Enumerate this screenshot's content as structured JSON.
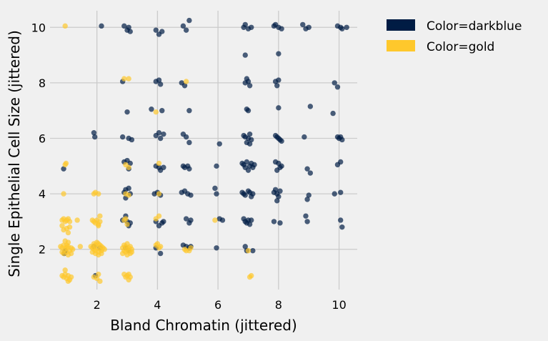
{
  "chart_data": {
    "type": "scatter",
    "title": "",
    "xlabel": "Bland Chromatin (jittered)",
    "ylabel": "Single Epithelial Cell Size (jittered)",
    "xlim": [
      0.45,
      10.6
    ],
    "ylim": [
      0.55,
      10.6
    ],
    "xticks": [
      2,
      4,
      6,
      8,
      10
    ],
    "yticks": [
      2,
      4,
      6,
      8,
      10
    ],
    "grid": true,
    "legend_position": "outside-top-right",
    "series": [
      {
        "name": "Color=darkblue",
        "color": "#001c44",
        "points": [
          [
            0.9,
            4.9
          ],
          [
            0.92,
            1.85
          ],
          [
            0.95,
            1.95
          ],
          [
            1.9,
            6.2
          ],
          [
            1.93,
            6.05
          ],
          [
            1.95,
            1.05
          ],
          [
            1.9,
            2.1
          ],
          [
            2.1,
            2.05
          ],
          [
            2.15,
            10.05
          ],
          [
            2.85,
            8.05
          ],
          [
            2.9,
            10.05
          ],
          [
            3.0,
            9.9
          ],
          [
            3.05,
            10.0
          ],
          [
            3.1,
            9.85
          ],
          [
            3.0,
            6.95
          ],
          [
            2.85,
            6.05
          ],
          [
            3.05,
            6.0
          ],
          [
            3.15,
            5.95
          ],
          [
            2.9,
            5.15
          ],
          [
            3.0,
            5.2
          ],
          [
            3.1,
            5.1
          ],
          [
            3.05,
            4.9
          ],
          [
            2.95,
            4.15
          ],
          [
            3.05,
            4.2
          ],
          [
            2.9,
            4.05
          ],
          [
            3.1,
            4.0
          ],
          [
            2.95,
            3.85
          ],
          [
            2.85,
            3.05
          ],
          [
            2.95,
            3.2
          ],
          [
            3.0,
            3.0
          ],
          [
            3.1,
            2.95
          ],
          [
            3.05,
            2.85
          ],
          [
            2.95,
            2.05
          ],
          [
            3.05,
            1.95
          ],
          [
            3.8,
            7.05
          ],
          [
            3.95,
            8.05
          ],
          [
            4.05,
            8.1
          ],
          [
            4.1,
            7.95
          ],
          [
            4.15,
            7.0
          ],
          [
            3.95,
            6.1
          ],
          [
            4.05,
            6.2
          ],
          [
            4.1,
            6.0
          ],
          [
            4.2,
            6.15
          ],
          [
            3.95,
            5.0
          ],
          [
            4.05,
            4.95
          ],
          [
            4.1,
            4.85
          ],
          [
            4.2,
            4.95
          ],
          [
            3.9,
            4.0
          ],
          [
            4.0,
            4.05
          ],
          [
            4.1,
            3.95
          ],
          [
            3.95,
            3.0
          ],
          [
            4.05,
            2.85
          ],
          [
            4.15,
            2.95
          ],
          [
            4.2,
            3.0
          ],
          [
            3.95,
            2.05
          ],
          [
            4.1,
            1.85
          ],
          [
            3.95,
            9.9
          ],
          [
            4.05,
            9.75
          ],
          [
            4.15,
            9.85
          ],
          [
            4.85,
            10.05
          ],
          [
            4.95,
            9.9
          ],
          [
            5.05,
            10.25
          ],
          [
            4.8,
            8.0
          ],
          [
            4.9,
            7.9
          ],
          [
            5.05,
            7.0
          ],
          [
            4.85,
            6.15
          ],
          [
            4.95,
            6.05
          ],
          [
            5.05,
            5.85
          ],
          [
            4.85,
            5.0
          ],
          [
            4.9,
            4.95
          ],
          [
            5.0,
            5.0
          ],
          [
            5.05,
            4.9
          ],
          [
            4.8,
            4.05
          ],
          [
            4.9,
            4.1
          ],
          [
            5.0,
            4.0
          ],
          [
            5.1,
            3.95
          ],
          [
            4.95,
            3.1
          ],
          [
            5.1,
            3.05
          ],
          [
            5.05,
            2.95
          ],
          [
            4.85,
            2.15
          ],
          [
            4.95,
            2.1
          ],
          [
            5.05,
            2.05
          ],
          [
            5.1,
            2.1
          ],
          [
            5.9,
            4.2
          ],
          [
            5.95,
            4.0
          ],
          [
            5.95,
            5.0
          ],
          [
            6.05,
            5.8
          ],
          [
            6.05,
            3.1
          ],
          [
            6.15,
            3.05
          ],
          [
            5.95,
            2.05
          ],
          [
            6.85,
            10.0
          ],
          [
            6.9,
            10.1
          ],
          [
            7.0,
            9.95
          ],
          [
            7.1,
            10.0
          ],
          [
            6.9,
            9.0
          ],
          [
            6.95,
            8.15
          ],
          [
            6.9,
            8.0
          ],
          [
            7.0,
            8.05
          ],
          [
            7.05,
            7.9
          ],
          [
            6.95,
            7.05
          ],
          [
            7.0,
            7.0
          ],
          [
            6.85,
            6.1
          ],
          [
            6.9,
            6.05
          ],
          [
            7.0,
            6.0
          ],
          [
            7.05,
            6.15
          ],
          [
            7.1,
            5.95
          ],
          [
            6.95,
            5.85
          ],
          [
            7.05,
            5.8
          ],
          [
            6.8,
            5.1
          ],
          [
            6.85,
            5.05
          ],
          [
            6.9,
            4.95
          ],
          [
            6.95,
            5.15
          ],
          [
            7.0,
            4.85
          ],
          [
            7.05,
            5.0
          ],
          [
            7.1,
            5.1
          ],
          [
            7.15,
            4.95
          ],
          [
            7.2,
            5.05
          ],
          [
            6.8,
            4.05
          ],
          [
            6.85,
            4.0
          ],
          [
            6.9,
            3.95
          ],
          [
            7.0,
            4.1
          ],
          [
            7.05,
            4.05
          ],
          [
            7.1,
            3.9
          ],
          [
            7.15,
            4.0
          ],
          [
            6.85,
            3.1
          ],
          [
            6.9,
            3.0
          ],
          [
            6.95,
            2.95
          ],
          [
            7.0,
            3.05
          ],
          [
            7.05,
            2.9
          ],
          [
            7.1,
            3.05
          ],
          [
            6.9,
            2.1
          ],
          [
            6.95,
            1.95
          ],
          [
            7.15,
            1.95
          ],
          [
            7.85,
            10.05
          ],
          [
            7.9,
            10.1
          ],
          [
            8.0,
            10.0
          ],
          [
            8.1,
            9.95
          ],
          [
            8.0,
            9.05
          ],
          [
            7.9,
            8.05
          ],
          [
            8.0,
            8.1
          ],
          [
            7.95,
            7.9
          ],
          [
            8.0,
            7.1
          ],
          [
            7.9,
            6.1
          ],
          [
            7.95,
            6.05
          ],
          [
            8.0,
            6.0
          ],
          [
            8.05,
            5.95
          ],
          [
            8.1,
            5.9
          ],
          [
            7.9,
            5.15
          ],
          [
            8.0,
            5.1
          ],
          [
            8.1,
            5.0
          ],
          [
            7.95,
            4.85
          ],
          [
            8.05,
            4.95
          ],
          [
            7.85,
            4.05
          ],
          [
            7.9,
            4.15
          ],
          [
            7.95,
            4.0
          ],
          [
            8.0,
            3.9
          ],
          [
            8.05,
            4.1
          ],
          [
            7.95,
            3.75
          ],
          [
            7.85,
            3.0
          ],
          [
            8.05,
            2.95
          ],
          [
            8.8,
            10.1
          ],
          [
            8.9,
            9.95
          ],
          [
            9.0,
            10.0
          ],
          [
            9.05,
            7.15
          ],
          [
            8.85,
            6.05
          ],
          [
            8.95,
            4.9
          ],
          [
            9.05,
            4.75
          ],
          [
            9.0,
            3.95
          ],
          [
            8.95,
            3.8
          ],
          [
            8.9,
            3.2
          ],
          [
            8.95,
            3.0
          ],
          [
            9.8,
            6.9
          ],
          [
            9.85,
            8.0
          ],
          [
            9.95,
            7.85
          ],
          [
            9.95,
            10.05
          ],
          [
            10.05,
            10.0
          ],
          [
            10.1,
            9.95
          ],
          [
            10.25,
            10.0
          ],
          [
            9.95,
            6.05
          ],
          [
            10.0,
            6.0
          ],
          [
            10.05,
            6.05
          ],
          [
            10.1,
            5.95
          ],
          [
            9.95,
            5.05
          ],
          [
            10.05,
            5.15
          ],
          [
            9.85,
            4.0
          ],
          [
            10.05,
            4.05
          ],
          [
            10.05,
            3.05
          ],
          [
            10.1,
            2.8
          ]
        ]
      },
      {
        "name": "Color=gold",
        "color": "#fec82c",
        "points": [
          [
            0.95,
            10.05
          ],
          [
            0.95,
            5.05
          ],
          [
            0.98,
            5.1
          ],
          [
            0.9,
            4.0
          ],
          [
            0.85,
            3.05
          ],
          [
            0.9,
            3.1
          ],
          [
            0.95,
            3.0
          ],
          [
            1.0,
            3.05
          ],
          [
            1.05,
            3.1
          ],
          [
            1.1,
            3.0
          ],
          [
            0.85,
            2.85
          ],
          [
            0.9,
            2.7
          ],
          [
            1.0,
            2.75
          ],
          [
            1.1,
            2.8
          ],
          [
            1.05,
            2.6
          ],
          [
            0.95,
            2.3
          ],
          [
            1.05,
            2.25
          ],
          [
            1.0,
            2.15
          ],
          [
            0.8,
            2.1
          ],
          [
            0.85,
            2.05
          ],
          [
            0.9,
            2.15
          ],
          [
            0.95,
            2.0
          ],
          [
            1.0,
            2.05
          ],
          [
            1.05,
            2.1
          ],
          [
            1.1,
            1.95
          ],
          [
            1.15,
            2.05
          ],
          [
            1.2,
            2.0
          ],
          [
            0.85,
            1.9
          ],
          [
            0.9,
            1.85
          ],
          [
            1.0,
            1.9
          ],
          [
            1.05,
            1.8
          ],
          [
            1.15,
            1.85
          ],
          [
            0.85,
            1.05
          ],
          [
            0.9,
            1.0
          ],
          [
            0.95,
            1.1
          ],
          [
            1.0,
            0.95
          ],
          [
            1.05,
            1.05
          ],
          [
            1.1,
            0.9
          ],
          [
            1.15,
            1.0
          ],
          [
            0.95,
            1.25
          ],
          [
            1.05,
            0.85
          ],
          [
            1.35,
            3.05
          ],
          [
            1.45,
            2.1
          ],
          [
            1.9,
            4.0
          ],
          [
            1.95,
            4.05
          ],
          [
            2.05,
            4.0
          ],
          [
            1.85,
            3.05
          ],
          [
            1.9,
            3.0
          ],
          [
            1.95,
            2.95
          ],
          [
            2.0,
            3.05
          ],
          [
            2.05,
            2.9
          ],
          [
            2.1,
            3.0
          ],
          [
            2.1,
            3.2
          ],
          [
            2.05,
            2.85
          ],
          [
            1.9,
            2.2
          ],
          [
            1.95,
            2.15
          ],
          [
            2.0,
            2.25
          ],
          [
            2.05,
            2.2
          ],
          [
            2.1,
            2.15
          ],
          [
            2.15,
            2.1
          ],
          [
            1.8,
            2.1
          ],
          [
            1.85,
            2.05
          ],
          [
            1.9,
            2.0
          ],
          [
            1.95,
            1.95
          ],
          [
            2.0,
            2.05
          ],
          [
            2.05,
            1.9
          ],
          [
            2.1,
            2.0
          ],
          [
            2.15,
            1.95
          ],
          [
            2.2,
            2.05
          ],
          [
            2.25,
            2.0
          ],
          [
            1.85,
            1.9
          ],
          [
            1.95,
            1.85
          ],
          [
            2.05,
            1.8
          ],
          [
            2.15,
            1.85
          ],
          [
            1.9,
            1.0
          ],
          [
            2.0,
            0.95
          ],
          [
            2.05,
            1.1
          ],
          [
            2.1,
            0.85
          ],
          [
            2.9,
            8.15
          ],
          [
            3.05,
            8.15
          ],
          [
            2.95,
            5.05
          ],
          [
            3.05,
            4.95
          ],
          [
            2.95,
            4.0
          ],
          [
            3.05,
            3.95
          ],
          [
            2.9,
            3.05
          ],
          [
            2.95,
            3.1
          ],
          [
            3.0,
            2.9
          ],
          [
            2.9,
            2.15
          ],
          [
            2.95,
            2.1
          ],
          [
            3.0,
            2.2
          ],
          [
            3.05,
            2.05
          ],
          [
            3.1,
            2.1
          ],
          [
            3.15,
            2.0
          ],
          [
            2.85,
            2.05
          ],
          [
            2.9,
            1.95
          ],
          [
            2.95,
            1.9
          ],
          [
            3.0,
            2.0
          ],
          [
            3.05,
            1.95
          ],
          [
            3.1,
            1.85
          ],
          [
            2.85,
            1.85
          ],
          [
            3.0,
            1.8
          ],
          [
            3.15,
            1.9
          ],
          [
            2.9,
            1.1
          ],
          [
            2.95,
            1.0
          ],
          [
            3.0,
            1.05
          ],
          [
            3.05,
            0.9
          ],
          [
            3.1,
            1.0
          ],
          [
            3.05,
            1.1
          ],
          [
            3.95,
            6.95
          ],
          [
            4.05,
            5.1
          ],
          [
            4.05,
            4.0
          ],
          [
            4.05,
            3.2
          ],
          [
            3.95,
            3.1
          ],
          [
            4.0,
            2.2
          ],
          [
            3.95,
            2.15
          ],
          [
            4.05,
            2.05
          ],
          [
            4.1,
            2.1
          ],
          [
            4.95,
            8.05
          ],
          [
            4.9,
            2.0
          ],
          [
            4.95,
            1.95
          ],
          [
            5.05,
            1.95
          ],
          [
            5.1,
            2.05
          ],
          [
            5.9,
            3.05
          ],
          [
            7.0,
            1.95
          ],
          [
            7.05,
            1.0
          ],
          [
            7.1,
            1.05
          ]
        ]
      }
    ]
  }
}
